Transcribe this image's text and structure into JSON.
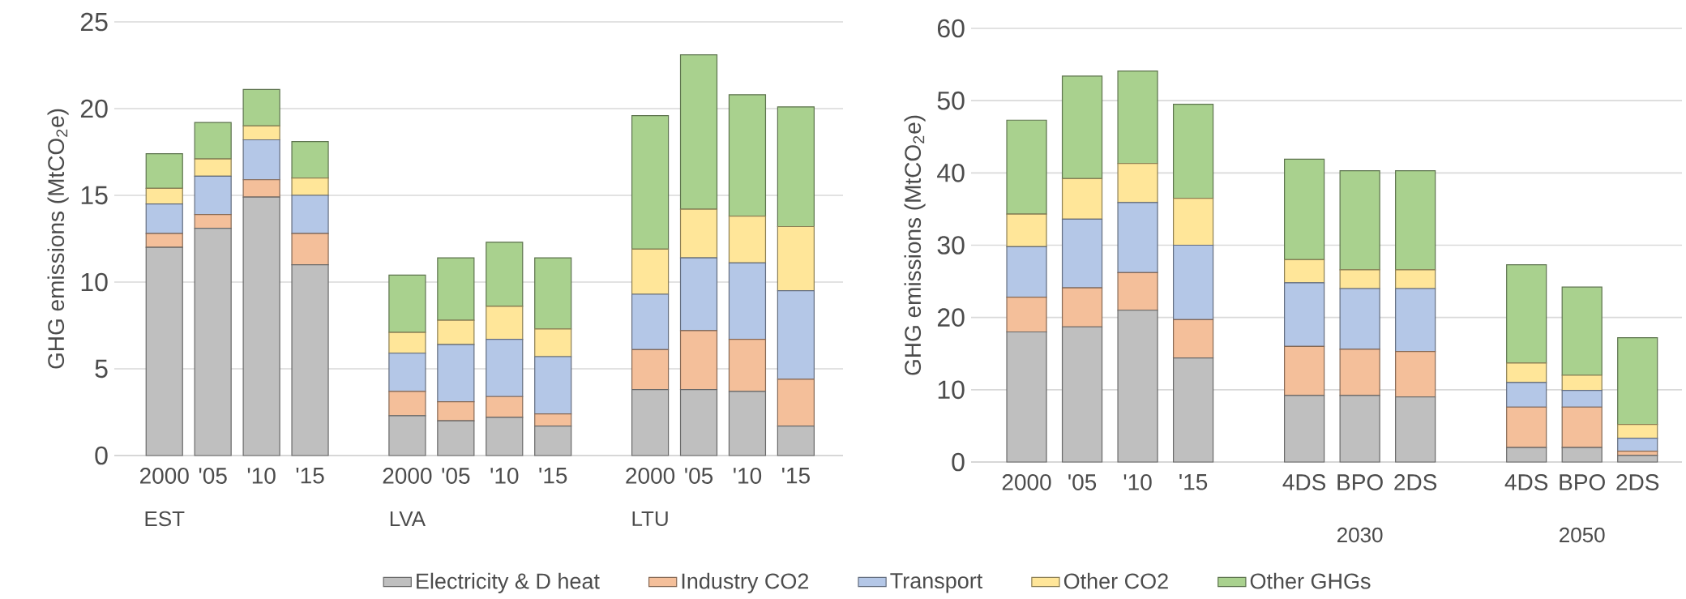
{
  "chart_data": [
    {
      "type": "bar",
      "stacked": true,
      "ylabel": "GHG emissions (MtCO$_{2}$e)",
      "ylim": [
        0,
        25
      ],
      "yticks": [
        0,
        5,
        10,
        15,
        20,
        25
      ],
      "grid": "y",
      "legend": "bottom",
      "categories": [
        "2000",
        "'05",
        "'10",
        "'15",
        null,
        "2000",
        "'05",
        "'10",
        "'15",
        null,
        "2000",
        "'05",
        "'10",
        "'15"
      ],
      "annotations": [
        "EST",
        "LVA",
        "LTU"
      ],
      "series": [
        {
          "name": "Electricity & D heat",
          "color": "#bfbfbf",
          "values": [
            12.0,
            13.1,
            14.9,
            11.0,
            null,
            2.3,
            2.0,
            2.2,
            1.7,
            null,
            3.8,
            3.8,
            3.7,
            1.7
          ]
        },
        {
          "name": "Industry CO2",
          "color": "#f4bf9a",
          "values": [
            0.8,
            0.8,
            1.0,
            1.8,
            null,
            1.4,
            1.1,
            1.2,
            0.7,
            null,
            2.3,
            3.4,
            3.0,
            2.7
          ]
        },
        {
          "name": "Transport",
          "color": "#b4c7e7",
          "values": [
            1.7,
            2.2,
            2.3,
            2.2,
            null,
            2.2,
            3.3,
            3.3,
            3.3,
            null,
            3.2,
            4.2,
            4.4,
            5.1
          ]
        },
        {
          "name": "Other CO2",
          "color": "#ffe699",
          "values": [
            0.9,
            1.0,
            0.8,
            1.0,
            null,
            1.2,
            1.4,
            1.9,
            1.6,
            null,
            2.6,
            2.8,
            2.7,
            3.7
          ]
        },
        {
          "name": "Other GHGs",
          "color": "#a9d18e",
          "values": [
            2.0,
            2.1,
            2.1,
            2.1,
            null,
            3.3,
            3.6,
            3.7,
            4.1,
            null,
            7.7,
            8.9,
            7.0,
            6.9
          ]
        }
      ]
    },
    {
      "type": "bar",
      "stacked": true,
      "ylabel": "GHG emissions (MtCO$_{2}$e)",
      "ylim": [
        0,
        60
      ],
      "yticks": [
        0,
        10,
        20,
        30,
        40,
        50,
        60
      ],
      "grid": "y",
      "categories": [
        "2000",
        "'05",
        "'10",
        "'15",
        null,
        "4DS",
        "BPO",
        "2DS",
        null,
        "4DS",
        "BPO",
        "2DS"
      ],
      "annotations": [
        "2030",
        "2050"
      ],
      "series": [
        {
          "color": "#bfbfbf",
          "values": [
            18.0,
            18.7,
            21.0,
            14.4,
            null,
            9.2,
            9.2,
            9.0,
            null,
            2.0,
            2.0,
            0.9
          ]
        },
        {
          "color": "#f4bf9a",
          "values": [
            4.8,
            5.4,
            5.2,
            5.3,
            null,
            6.8,
            6.4,
            6.3,
            null,
            5.6,
            5.6,
            0.6
          ]
        },
        {
          "color": "#b4c7e7",
          "values": [
            7.0,
            9.5,
            9.7,
            10.3,
            null,
            8.8,
            8.4,
            8.7,
            null,
            3.4,
            2.3,
            1.8
          ]
        },
        {
          "color": "#ffe699",
          "values": [
            4.5,
            5.6,
            5.4,
            6.5,
            null,
            3.2,
            2.6,
            2.6,
            null,
            2.7,
            2.1,
            1.9
          ]
        },
        {
          "color": "#a9d18e",
          "values": [
            13.0,
            14.2,
            12.8,
            13.0,
            null,
            13.9,
            13.7,
            13.7,
            null,
            13.6,
            12.2,
            12.0
          ]
        }
      ]
    }
  ]
}
